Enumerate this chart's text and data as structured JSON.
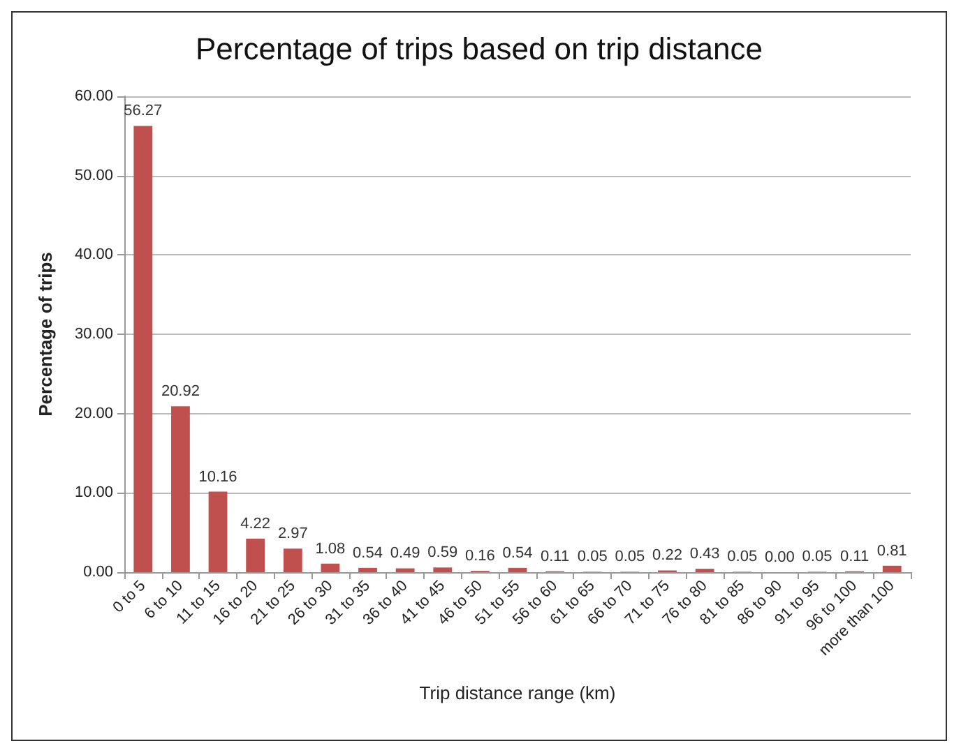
{
  "chart_data": {
    "type": "bar",
    "title": "Percentage of trips based on trip distance",
    "xlabel": "Trip distance range (km)",
    "ylabel": "Percentage of trips",
    "categories": [
      "0 to 5",
      "6 to 10",
      "11 to 15",
      "16 to 20",
      "21 to 25",
      "26 to 30",
      "31 to 35",
      "36 to 40",
      "41 to 45",
      "46 to 50",
      "51 to 55",
      "56 to 60",
      "61 to 65",
      "66 to 70",
      "71 to 75",
      "76 to 80",
      "81 to 85",
      "86 to 90",
      "91 to 95",
      "96 to 100",
      "more than 100"
    ],
    "values": [
      56.27,
      20.92,
      10.16,
      4.22,
      2.97,
      1.08,
      0.54,
      0.49,
      0.59,
      0.16,
      0.54,
      0.11,
      0.05,
      0.05,
      0.22,
      0.43,
      0.05,
      0,
      0.05,
      0.11,
      0.81
    ],
    "value_labels": [
      "56.27",
      "20.92",
      "10.16",
      "4.22",
      "2.97",
      "1.08",
      "0.54",
      "0.49",
      "0.59",
      "0.16",
      "0.54",
      "0.11",
      "0.05",
      "0.05",
      "0.22",
      "0.43",
      "0.05",
      "0.00",
      "0.05",
      "0.11",
      "0.81"
    ],
    "color": "#c0504d",
    "ylim": [
      0,
      60
    ],
    "yticks": [
      {
        "value": 0,
        "label": "0.00"
      },
      {
        "value": 10,
        "label": "10.00"
      },
      {
        "value": 20,
        "label": "20.00"
      },
      {
        "value": 30,
        "label": "30.00"
      },
      {
        "value": 40,
        "label": "40.00"
      },
      {
        "value": 50,
        "label": "50.00"
      },
      {
        "value": 60,
        "label": "60.00"
      }
    ],
    "grid": "y"
  }
}
